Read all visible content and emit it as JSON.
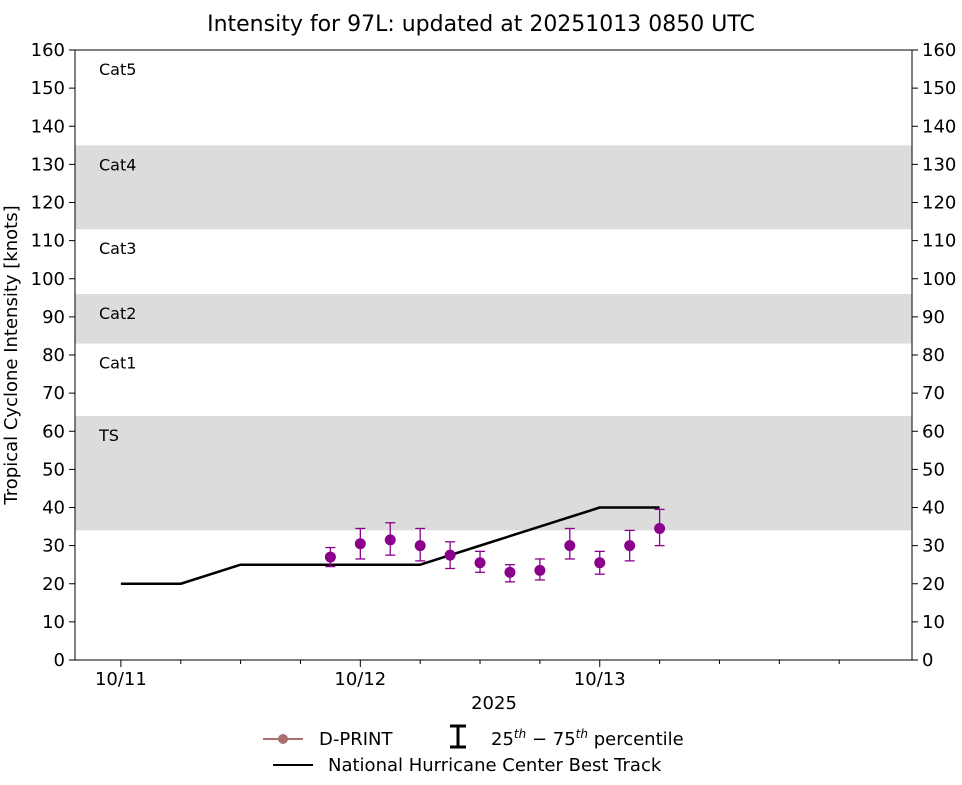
{
  "chart_data": {
    "type": "scatter",
    "title": "Intensity for 97L: updated at 20251013 0850 UTC",
    "ylabel": "Tropical Cyclone Intensity [knots]",
    "xlabel": "2025",
    "ylim": [
      0,
      160
    ],
    "yticks": [
      0,
      10,
      20,
      30,
      40,
      50,
      60,
      70,
      80,
      90,
      100,
      110,
      120,
      130,
      140,
      150,
      160
    ],
    "x_unit": "hours from 10/11 00 UTC",
    "xlim": [
      -4.6,
      79.3
    ],
    "xticks_major": [
      {
        "x": 0,
        "label": "10/11"
      },
      {
        "x": 24,
        "label": "10/12"
      },
      {
        "x": 48,
        "label": "10/13"
      }
    ],
    "xticks_minor": [
      6,
      12,
      18,
      30,
      36,
      42,
      54,
      60,
      66,
      72
    ],
    "category_bands": [
      {
        "label": "TS",
        "min": 34,
        "max": 64,
        "shaded": true
      },
      {
        "label": "Cat1",
        "min": 64,
        "max": 83,
        "shaded": false
      },
      {
        "label": "Cat2",
        "min": 83,
        "max": 96,
        "shaded": true
      },
      {
        "label": "Cat3",
        "min": 96,
        "max": 113,
        "shaded": false
      },
      {
        "label": "Cat4",
        "min": 113,
        "max": 135,
        "shaded": true
      },
      {
        "label": "Cat5",
        "min": 135,
        "max": 160,
        "shaded": false
      }
    ],
    "series": [
      {
        "name": "D-PRINT",
        "color": "#8b008b",
        "points": [
          {
            "x": 21,
            "y": 27,
            "p25": 24.5,
            "p75": 29.5
          },
          {
            "x": 24,
            "y": 30.5,
            "p25": 26.5,
            "p75": 34.5
          },
          {
            "x": 27,
            "y": 31.5,
            "p25": 27.5,
            "p75": 36
          },
          {
            "x": 30,
            "y": 30,
            "p25": 26,
            "p75": 34.5
          },
          {
            "x": 33,
            "y": 27.5,
            "p25": 24,
            "p75": 31
          },
          {
            "x": 36,
            "y": 25.5,
            "p25": 23,
            "p75": 28.5
          },
          {
            "x": 39,
            "y": 23,
            "p25": 20.5,
            "p75": 25
          },
          {
            "x": 42,
            "y": 23.5,
            "p25": 21,
            "p75": 26.5
          },
          {
            "x": 45,
            "y": 30,
            "p25": 26.5,
            "p75": 34.5
          },
          {
            "x": 48,
            "y": 25.5,
            "p25": 22.5,
            "p75": 28.5
          },
          {
            "x": 51,
            "y": 30,
            "p25": 26,
            "p75": 34
          },
          {
            "x": 54,
            "y": 34.5,
            "p25": 30,
            "p75": 39.5
          }
        ]
      },
      {
        "name": "National Hurricane Center Best Track",
        "color": "#000000",
        "points": [
          {
            "x": 0,
            "y": 20
          },
          {
            "x": 6,
            "y": 20
          },
          {
            "x": 12,
            "y": 25
          },
          {
            "x": 18,
            "y": 25
          },
          {
            "x": 24,
            "y": 25
          },
          {
            "x": 30,
            "y": 25
          },
          {
            "x": 36,
            "y": 30
          },
          {
            "x": 42,
            "y": 35
          },
          {
            "x": 48,
            "y": 40
          },
          {
            "x": 54,
            "y": 40
          }
        ]
      }
    ],
    "legend": {
      "placement": "bottom-center",
      "dprint_label": "D-PRINT",
      "percentile_label": "25th − 75th percentile",
      "percentile_label_parts": [
        "25",
        "th",
        " − 75",
        "th",
        " percentile"
      ],
      "besttrack_label": "National Hurricane Center Best Track",
      "dprint_marker_color": "#a97070"
    },
    "colors": {
      "band": "#dcdcdc",
      "dprint": "#8b008b",
      "besttrack": "#000000"
    },
    "grid": false
  }
}
